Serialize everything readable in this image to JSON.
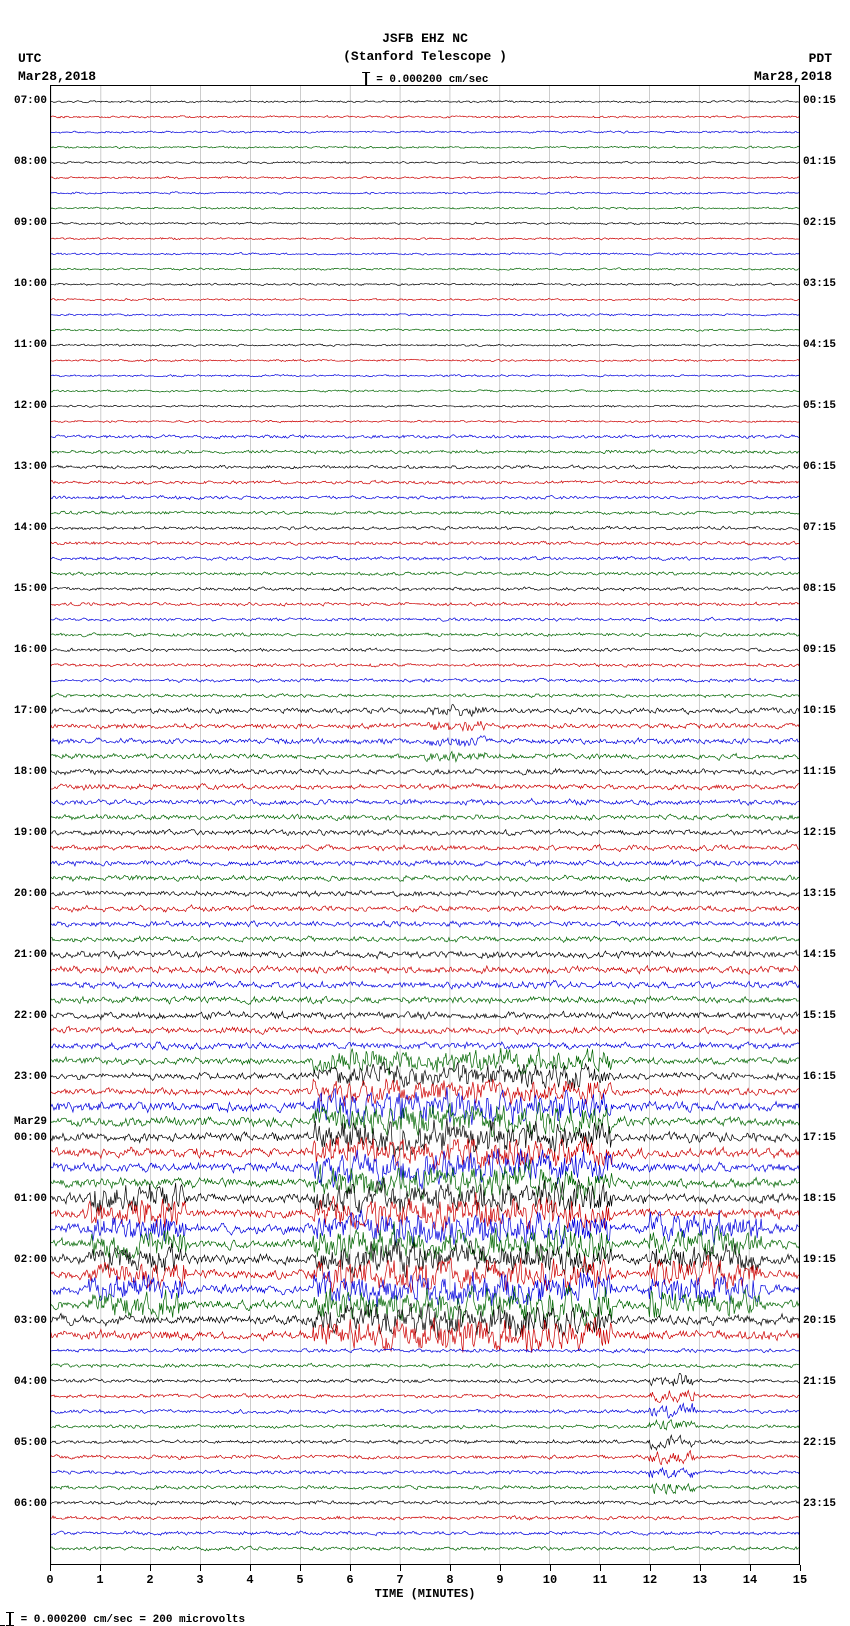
{
  "header": {
    "title_line1": "JSFB EHZ NC",
    "title_line2": "(Stanford Telescope )",
    "scale_text": "= 0.000200 cm/sec",
    "tz_left": "UTC",
    "date_left": "Mar28,2018",
    "tz_right": "PDT",
    "date_right": "Mar28,2018"
  },
  "footer": {
    "text": "= 0.000200 cm/sec =    200 microvolts",
    "scale_bar_label": ""
  },
  "x_axis": {
    "title": "TIME (MINUTES)",
    "min": 0,
    "max": 15,
    "ticks": [
      0,
      1,
      2,
      3,
      4,
      5,
      6,
      7,
      8,
      9,
      10,
      11,
      12,
      13,
      14,
      15
    ]
  },
  "chart": {
    "type": "helicorder",
    "background": "#ffffff",
    "grid_color": "#aaaaaa",
    "grid_minutes": [
      0,
      1,
      2,
      3,
      4,
      5,
      6,
      7,
      8,
      9,
      10,
      11,
      12,
      13,
      14,
      15
    ],
    "trace_colors": [
      "#000000",
      "#cc0000",
      "#0000dd",
      "#006600"
    ],
    "n_traces": 96,
    "trace_spacing": 1,
    "amplitude_schedule": [
      {
        "from": 0,
        "to": 22,
        "amp": 1.0
      },
      {
        "from": 22,
        "to": 40,
        "amp": 1.6
      },
      {
        "from": 40,
        "to": 56,
        "amp": 2.6
      },
      {
        "from": 56,
        "to": 66,
        "amp": 3.3
      },
      {
        "from": 66,
        "to": 82,
        "amp": 4.5
      },
      {
        "from": 82,
        "to": 96,
        "amp": 1.8
      }
    ],
    "burst_regions": [
      {
        "trace_from": 63,
        "trace_to": 82,
        "x_from": 0.35,
        "x_to": 0.75,
        "amp_mult": 3.5
      },
      {
        "trace_from": 72,
        "trace_to": 80,
        "x_from": 0.05,
        "x_to": 0.18,
        "amp_mult": 3.0
      },
      {
        "trace_from": 74,
        "trace_to": 80,
        "x_from": 0.8,
        "x_to": 0.95,
        "amp_mult": 3.2
      },
      {
        "trace_from": 84,
        "trace_to": 92,
        "x_from": 0.8,
        "x_to": 0.86,
        "amp_mult": 3.5
      },
      {
        "trace_from": 40,
        "trace_to": 44,
        "x_from": 0.5,
        "x_to": 0.58,
        "amp_mult": 2.0
      }
    ],
    "left_labels": [
      {
        "trace": 0,
        "text": "07:00"
      },
      {
        "trace": 4,
        "text": "08:00"
      },
      {
        "trace": 8,
        "text": "09:00"
      },
      {
        "trace": 12,
        "text": "10:00"
      },
      {
        "trace": 16,
        "text": "11:00"
      },
      {
        "trace": 20,
        "text": "12:00"
      },
      {
        "trace": 24,
        "text": "13:00"
      },
      {
        "trace": 28,
        "text": "14:00"
      },
      {
        "trace": 32,
        "text": "15:00"
      },
      {
        "trace": 36,
        "text": "16:00"
      },
      {
        "trace": 40,
        "text": "17:00"
      },
      {
        "trace": 44,
        "text": "18:00"
      },
      {
        "trace": 48,
        "text": "19:00"
      },
      {
        "trace": 52,
        "text": "20:00"
      },
      {
        "trace": 56,
        "text": "21:00"
      },
      {
        "trace": 60,
        "text": "22:00"
      },
      {
        "trace": 64,
        "text": "23:00"
      },
      {
        "trace": 67,
        "text": "Mar29"
      },
      {
        "trace": 68,
        "text": "00:00"
      },
      {
        "trace": 72,
        "text": "01:00"
      },
      {
        "trace": 76,
        "text": "02:00"
      },
      {
        "trace": 80,
        "text": "03:00"
      },
      {
        "trace": 84,
        "text": "04:00"
      },
      {
        "trace": 88,
        "text": "05:00"
      },
      {
        "trace": 92,
        "text": "06:00"
      }
    ],
    "right_labels": [
      {
        "trace": 0,
        "text": "00:15"
      },
      {
        "trace": 4,
        "text": "01:15"
      },
      {
        "trace": 8,
        "text": "02:15"
      },
      {
        "trace": 12,
        "text": "03:15"
      },
      {
        "trace": 16,
        "text": "04:15"
      },
      {
        "trace": 20,
        "text": "05:15"
      },
      {
        "trace": 24,
        "text": "06:15"
      },
      {
        "trace": 28,
        "text": "07:15"
      },
      {
        "trace": 32,
        "text": "08:15"
      },
      {
        "trace": 36,
        "text": "09:15"
      },
      {
        "trace": 40,
        "text": "10:15"
      },
      {
        "trace": 44,
        "text": "11:15"
      },
      {
        "trace": 48,
        "text": "12:15"
      },
      {
        "trace": 52,
        "text": "13:15"
      },
      {
        "trace": 56,
        "text": "14:15"
      },
      {
        "trace": 60,
        "text": "15:15"
      },
      {
        "trace": 64,
        "text": "16:15"
      },
      {
        "trace": 68,
        "text": "17:15"
      },
      {
        "trace": 72,
        "text": "18:15"
      },
      {
        "trace": 76,
        "text": "19:15"
      },
      {
        "trace": 80,
        "text": "20:15"
      },
      {
        "trace": 84,
        "text": "21:15"
      },
      {
        "trace": 88,
        "text": "22:15"
      },
      {
        "trace": 92,
        "text": "23:15"
      }
    ]
  }
}
